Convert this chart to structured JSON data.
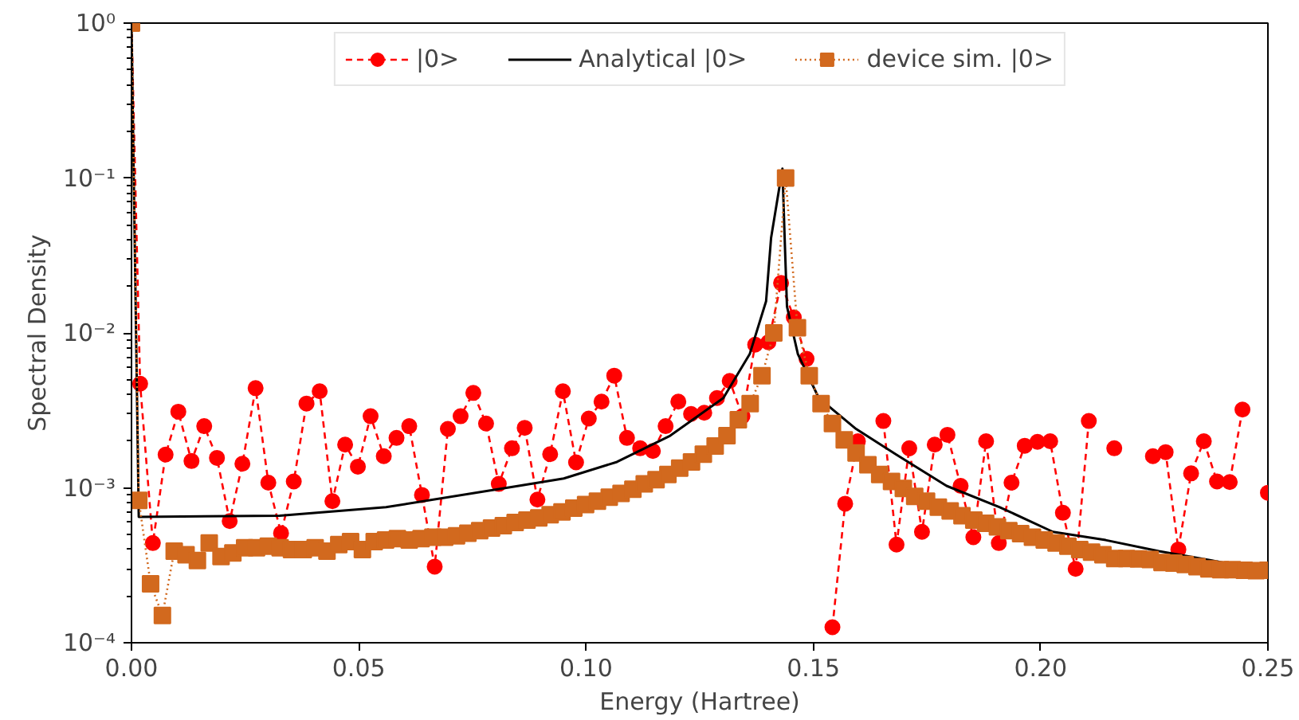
{
  "chart_data": {
    "type": "line",
    "xlabel": "Energy (Hartree)",
    "ylabel": "Spectral Density",
    "log": "y",
    "xlim": [
      0,
      0.25
    ],
    "ylim": [
      0.0001,
      1
    ],
    "xticks": [
      {
        "value": 0,
        "label": "0.00"
      },
      {
        "value": 0.05,
        "label": "0.05"
      },
      {
        "value": 0.1,
        "label": "0.10"
      },
      {
        "value": 0.15,
        "label": "0.15"
      },
      {
        "value": 0.2,
        "label": "0.20"
      },
      {
        "value": 0.25,
        "label": "0.25"
      }
    ],
    "yticks": [
      {
        "value": 0.0001,
        "label": "10⁻⁴"
      },
      {
        "value": 0.001,
        "label": "10⁻³"
      },
      {
        "value": 0.01,
        "label": "10⁻²"
      },
      {
        "value": 0.1,
        "label": "10⁻¹"
      },
      {
        "value": 1,
        "label": "10⁰"
      }
    ],
    "grid": false,
    "legend": "top",
    "series": [
      {
        "name": "|0>",
        "color": "#ff0000",
        "marker": "circle",
        "line_style": "dashed",
        "x": [
          0.0,
          0.0019,
          0.0047,
          0.0075,
          0.0103,
          0.0132,
          0.016,
          0.0188,
          0.0216,
          0.0244,
          0.0273,
          0.0301,
          0.0329,
          0.0357,
          0.0385,
          0.0414,
          0.0442,
          0.047,
          0.0498,
          0.0526,
          0.0555,
          0.0583,
          0.0611,
          0.0639,
          0.0667,
          0.0696,
          0.0724,
          0.0752,
          0.078,
          0.0808,
          0.0837,
          0.0865,
          0.0893,
          0.0921,
          0.0949,
          0.0978,
          0.1006,
          0.1034,
          0.1062,
          0.109,
          0.1119,
          0.1147,
          0.1175,
          0.1203,
          0.1231,
          0.126,
          0.1288,
          0.1316,
          0.1344,
          0.1372,
          0.1401,
          0.1429,
          0.1457,
          0.1485,
          0.1513,
          0.1542,
          0.157,
          0.1598,
          0.1626,
          0.1654,
          0.1683,
          0.1711,
          0.1739,
          0.1767,
          0.1795,
          0.1824,
          0.1852,
          0.188,
          0.1908,
          0.1936,
          0.1965,
          0.1993,
          0.2021,
          0.2049,
          0.2077,
          0.2106,
          0.2134,
          0.2162,
          0.219,
          0.2218,
          0.2247,
          0.2275,
          0.2303,
          0.2331,
          0.2359,
          0.2388,
          0.2416,
          0.2444,
          0.2472,
          0.25
        ],
        "values": [
          1.0,
          0.0047,
          0.00044,
          0.00164,
          0.0031,
          0.00149,
          0.0025,
          0.00156,
          0.00061,
          0.00143,
          0.0044,
          0.00108,
          0.00051,
          0.0011,
          0.0035,
          0.0042,
          0.00082,
          0.0019,
          0.00137,
          0.0029,
          0.0016,
          0.0021,
          0.0025,
          0.0009,
          0.00031,
          0.0024,
          0.0029,
          0.0041,
          0.0026,
          0.00106,
          0.0018,
          0.00244,
          0.00084,
          0.00165,
          0.0042,
          0.00146,
          0.0028,
          0.0036,
          0.0053,
          0.0021,
          0.0018,
          0.00173,
          0.0025,
          0.0036,
          0.003,
          0.00305,
          0.0038,
          0.0049,
          0.0029,
          0.0084,
          0.0087,
          0.021,
          0.0126,
          0.0068,
          null,
          0.000126,
          0.00079,
          0.002,
          null,
          0.0027,
          0.00043,
          0.0018,
          0.00052,
          0.0019,
          0.0022,
          0.00103,
          0.00048,
          0.002,
          0.00044,
          0.00108,
          0.00187,
          0.00198,
          0.002,
          0.00069,
          0.0003,
          0.0027,
          null,
          0.0018,
          null,
          null,
          0.0016,
          0.0017,
          0.0004,
          0.00124,
          0.002,
          0.0011,
          0.00109,
          0.0032,
          null,
          0.00093
        ]
      },
      {
        "name": "Analytical |0>",
        "color": "#000000",
        "marker": "none",
        "line_style": "solid",
        "x": [
          0.0,
          0.0016,
          0.0326,
          0.056,
          0.0852,
          0.0951,
          0.1068,
          0.1185,
          0.1302,
          0.136,
          0.1396,
          0.1407,
          0.1432,
          0.1437,
          0.1442,
          0.1466,
          0.1512,
          0.1594,
          0.1681,
          0.1793,
          0.191,
          0.2027,
          0.2143,
          0.226,
          0.2377,
          0.2494
        ],
        "values": [
          1.0,
          0.00065,
          0.00066,
          0.00075,
          0.00103,
          0.00115,
          0.00147,
          0.00217,
          0.0038,
          0.0073,
          0.016,
          0.041,
          0.115,
          0.04,
          0.0148,
          0.0073,
          0.0038,
          0.0024,
          0.00165,
          0.00103,
          0.00075,
          0.00052,
          0.00046,
          0.00039,
          0.00034,
          0.00029
        ]
      },
      {
        "name": "device sim. |0>",
        "color": "#d2691e",
        "marker": "square",
        "line_style": "dotted",
        "x": [
          0.0,
          0.0016,
          0.0042,
          0.0068,
          0.0094,
          0.012,
          0.0145,
          0.0171,
          0.0197,
          0.0223,
          0.0249,
          0.0275,
          0.0301,
          0.0327,
          0.0352,
          0.0378,
          0.0404,
          0.043,
          0.0456,
          0.0482,
          0.0508,
          0.0534,
          0.0559,
          0.0585,
          0.0611,
          0.0637,
          0.0663,
          0.0689,
          0.0715,
          0.074,
          0.0766,
          0.0792,
          0.0818,
          0.0844,
          0.087,
          0.0896,
          0.0921,
          0.0947,
          0.0973,
          0.0999,
          0.1025,
          0.1051,
          0.1077,
          0.1103,
          0.1128,
          0.1154,
          0.118,
          0.1206,
          0.1232,
          0.1258,
          0.1284,
          0.131,
          0.1335,
          0.1361,
          0.1387,
          0.1413,
          0.1439,
          0.1465,
          0.1491,
          0.1517,
          0.1542,
          0.1568,
          0.1594,
          0.162,
          0.1646,
          0.1672,
          0.1698,
          0.1723,
          0.1749,
          0.1775,
          0.1801,
          0.1827,
          0.1853,
          0.1879,
          0.1905,
          0.193,
          0.1956,
          0.1982,
          0.2008,
          0.2034,
          0.206,
          0.2086,
          0.2112,
          0.2137,
          0.2163,
          0.2189,
          0.2215,
          0.2241,
          0.2267,
          0.2293,
          0.2318,
          0.2344,
          0.237,
          0.2396,
          0.2422,
          0.2448,
          0.2474,
          0.25
        ],
        "values": [
          1.0,
          0.00083,
          0.00024,
          0.00015,
          0.00039,
          0.00037,
          0.00034,
          0.00044,
          0.00036,
          0.00038,
          0.00041,
          0.00041,
          0.00042,
          0.00041,
          0.0004,
          0.0004,
          0.00041,
          0.00039,
          0.00043,
          0.00045,
          0.0004,
          0.00045,
          0.00046,
          0.00047,
          0.00046,
          0.00047,
          0.00048,
          0.00048,
          0.00049,
          0.00051,
          0.00053,
          0.00055,
          0.00057,
          0.000597,
          0.00062,
          0.00064,
          0.00067,
          0.0007,
          0.00074,
          0.00078,
          0.00082,
          0.00087,
          0.00092,
          0.00098,
          0.00106,
          0.00113,
          0.00122,
          0.00134,
          0.00147,
          0.00165,
          0.00186,
          0.00217,
          0.00275,
          0.0035,
          0.0053,
          0.01,
          0.1,
          0.0108,
          0.0053,
          0.0035,
          0.0026,
          0.00204,
          0.00168,
          0.00141,
          0.00122,
          0.0011,
          0.00099,
          0.00088,
          0.00082,
          0.00075,
          0.00071,
          0.00066,
          0.00062,
          0.00059,
          0.00056,
          0.00053,
          0.000506,
          0.00048,
          0.00046,
          0.00044,
          0.00042,
          0.0004,
          0.000385,
          0.00037,
          0.00035,
          0.00035,
          0.000348,
          0.000345,
          0.00033,
          0.000327,
          0.00032,
          0.00031,
          0.0003,
          0.000296,
          0.000296,
          0.000294,
          0.000292,
          0.000294
        ]
      }
    ]
  }
}
